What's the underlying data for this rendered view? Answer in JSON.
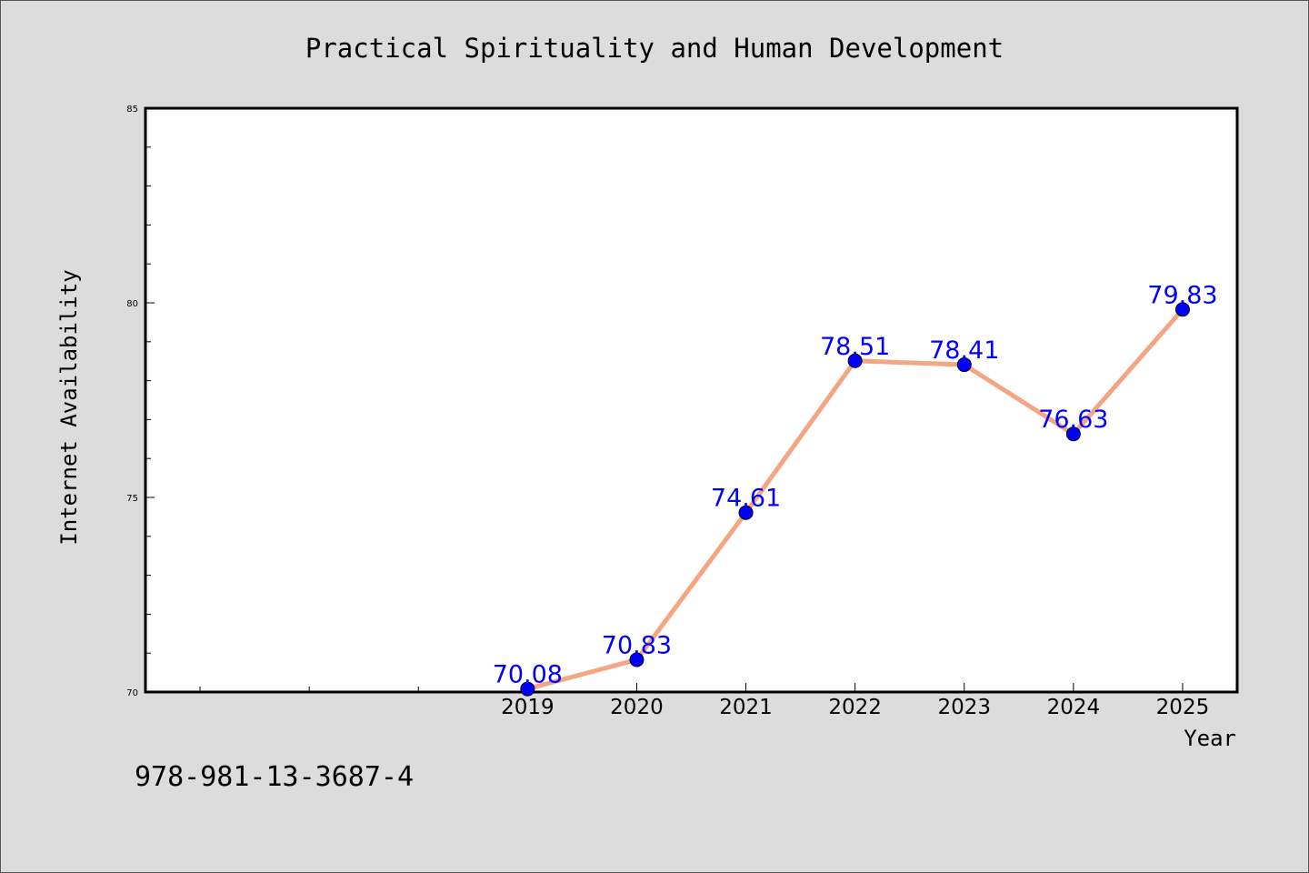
{
  "chart_data": {
    "type": "line",
    "title": "Practical Spirituality and Human Development",
    "xlabel": "Year",
    "ylabel": "Internet Availability",
    "x": [
      2019,
      2020,
      2021,
      2022,
      2023,
      2024,
      2025
    ],
    "values": [
      70.08,
      70.83,
      74.61,
      78.51,
      78.41,
      76.63,
      79.83
    ],
    "data_labels": [
      "70.08",
      "70.83",
      "74.61",
      "78.51",
      "78.41",
      "76.63",
      "79.83"
    ],
    "xlim": [
      2015.5,
      2025.5
    ],
    "ylim": [
      70,
      85
    ],
    "yticks": [
      70,
      75,
      80,
      85
    ],
    "grid": false,
    "line_color": "#f4a582",
    "marker_color": "#0000ff",
    "label_color": "#0000ff"
  },
  "footnote": "978-981-13-3687-4"
}
